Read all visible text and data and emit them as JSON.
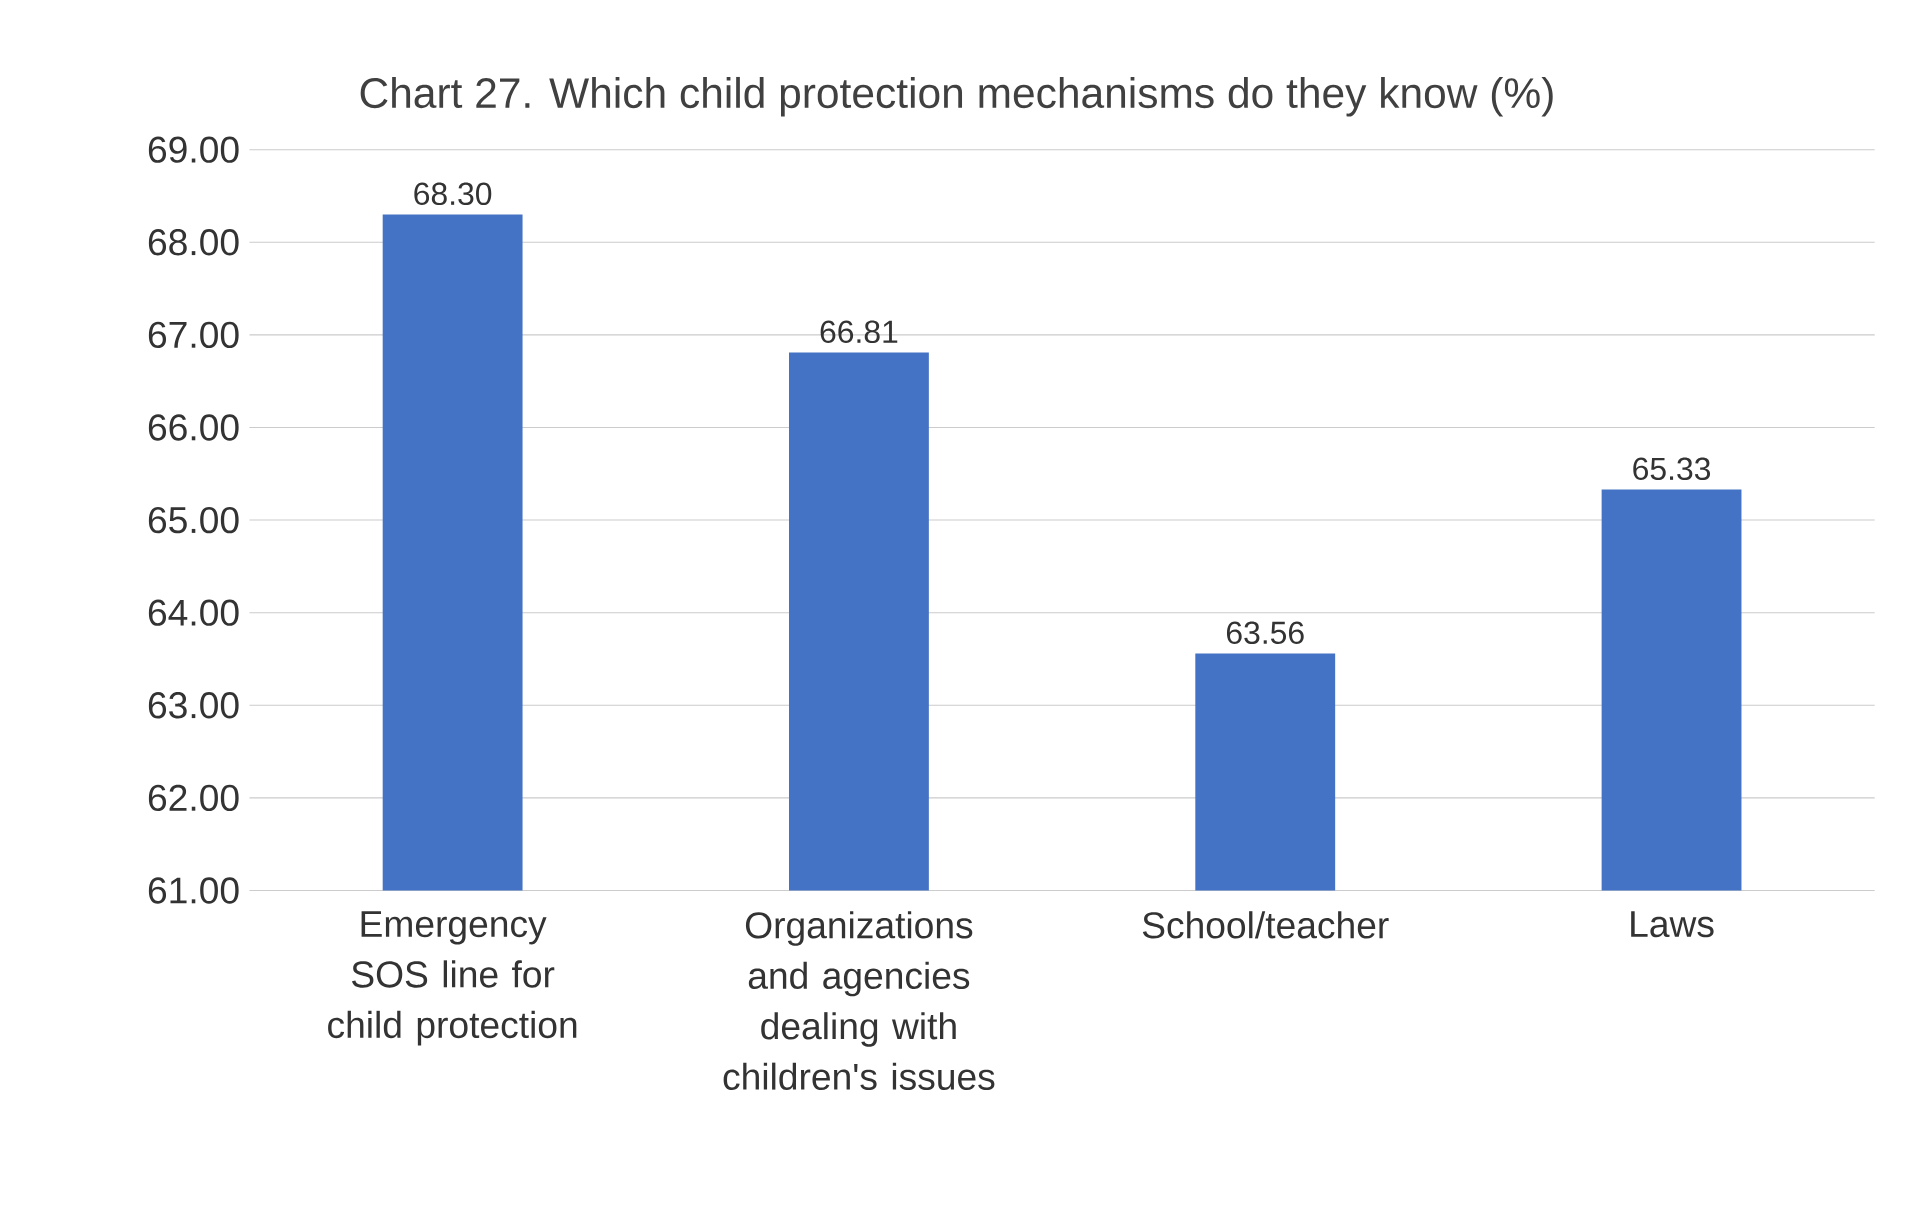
{
  "chart_data": {
    "type": "bar",
    "title": "Chart 27. Which child protection mechanisms do they know (%)",
    "categories": [
      "Emergency SOS line for child protection",
      "Organizations and agencies dealing with children's issues",
      "School/teacher",
      "Laws"
    ],
    "values": [
      68.3,
      66.81,
      63.56,
      65.33
    ],
    "value_labels": [
      "68.30",
      "66.81",
      "63.56",
      "65.33"
    ],
    "color": "#4472c4",
    "ylim": [
      61,
      69
    ],
    "yticks": [
      {
        "value": 61,
        "label": "61.00"
      },
      {
        "value": 62,
        "label": "62.00"
      },
      {
        "value": 63,
        "label": "63.00"
      },
      {
        "value": 64,
        "label": "64.00"
      },
      {
        "value": 65,
        "label": "65.00"
      },
      {
        "value": 66,
        "label": "66.00"
      },
      {
        "value": 67,
        "label": "67.00"
      },
      {
        "value": 68,
        "label": "68.00"
      },
      {
        "value": 69,
        "label": "69.00"
      }
    ],
    "grid": "y"
  }
}
